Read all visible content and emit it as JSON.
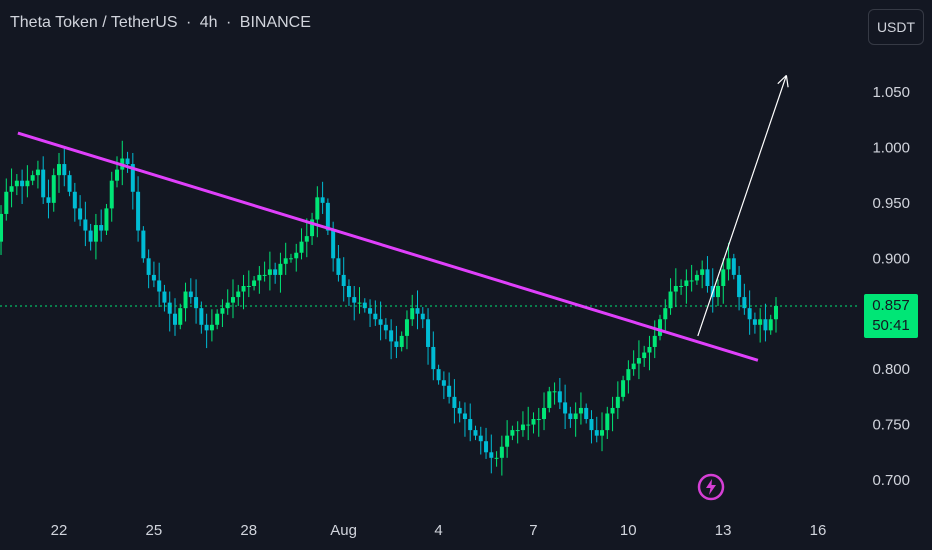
{
  "header": {
    "symbol_name": "Theta Token / TetherUS",
    "interval": "4h",
    "exchange": "BINANCE",
    "separator": "·"
  },
  "currency_button": "USDT",
  "last_price": {
    "price": "0.857",
    "countdown": "50:41"
  },
  "colors": {
    "background": "#131722",
    "up": "#00e676",
    "down": "#00bcd4",
    "trendline": "#e040fb",
    "arrow": "#ffffff",
    "price_line": "#00e676",
    "logo": "#d53fd5"
  },
  "icons": {
    "logo": "lightning-bolt-icon"
  },
  "chart_data": {
    "type": "candlestick",
    "ylim": [
      0.68,
      1.09
    ],
    "y_ticks": [
      "1.050",
      "1.000",
      "0.950",
      "0.900",
      "0.850",
      "0.800",
      "0.750",
      "0.700"
    ],
    "x_ticks": [
      {
        "label": "22",
        "day": 22
      },
      {
        "label": "25",
        "day": 25
      },
      {
        "label": "28",
        "day": 28
      },
      {
        "label": "Aug",
        "day": 31
      },
      {
        "label": "4",
        "day": 34
      },
      {
        "label": "7",
        "day": 37
      },
      {
        "label": "10",
        "day": 40
      },
      {
        "label": "13",
        "day": 43
      },
      {
        "label": "16",
        "day": 46
      }
    ],
    "candles": {
      "start_day": 20.0,
      "step_days": 0.1667,
      "close": [
        0.915,
        0.94,
        0.96,
        0.965,
        0.97,
        0.965,
        0.97,
        0.975,
        0.98,
        0.955,
        0.95,
        0.975,
        0.985,
        0.975,
        0.96,
        0.945,
        0.935,
        0.925,
        0.915,
        0.93,
        0.925,
        0.945,
        0.97,
        0.98,
        0.99,
        0.985,
        0.96,
        0.925,
        0.9,
        0.885,
        0.88,
        0.87,
        0.86,
        0.85,
        0.84,
        0.855,
        0.87,
        0.865,
        0.855,
        0.84,
        0.835,
        0.84,
        0.85,
        0.855,
        0.86,
        0.865,
        0.87,
        0.875,
        0.875,
        0.88,
        0.885,
        0.885,
        0.89,
        0.885,
        0.895,
        0.9,
        0.9,
        0.905,
        0.915,
        0.92,
        0.935,
        0.955,
        0.95,
        0.925,
        0.9,
        0.885,
        0.875,
        0.865,
        0.86,
        0.86,
        0.855,
        0.85,
        0.845,
        0.84,
        0.835,
        0.825,
        0.82,
        0.83,
        0.845,
        0.855,
        0.85,
        0.845,
        0.82,
        0.8,
        0.79,
        0.785,
        0.775,
        0.765,
        0.76,
        0.755,
        0.745,
        0.74,
        0.735,
        0.725,
        0.72,
        0.72,
        0.73,
        0.74,
        0.745,
        0.745,
        0.75,
        0.75,
        0.755,
        0.755,
        0.765,
        0.78,
        0.78,
        0.77,
        0.76,
        0.755,
        0.76,
        0.765,
        0.755,
        0.745,
        0.74,
        0.745,
        0.76,
        0.765,
        0.775,
        0.79,
        0.8,
        0.805,
        0.81,
        0.815,
        0.82,
        0.83,
        0.845,
        0.855,
        0.87,
        0.875,
        0.875,
        0.88,
        0.88,
        0.885,
        0.89,
        0.875,
        0.865,
        0.875,
        0.89,
        0.9,
        0.885,
        0.865,
        0.855,
        0.845,
        0.84,
        0.845,
        0.835,
        0.845,
        0.857
      ],
      "open": [
        0.9,
        0.915,
        0.94,
        0.96,
        0.965,
        0.97,
        0.965,
        0.97,
        0.975,
        0.98,
        0.955,
        0.95,
        0.975,
        0.985,
        0.975,
        0.96,
        0.945,
        0.935,
        0.925,
        0.915,
        0.93,
        0.925,
        0.945,
        0.97,
        0.98,
        0.99,
        0.985,
        0.96,
        0.925,
        0.9,
        0.885,
        0.88,
        0.87,
        0.86,
        0.85,
        0.84,
        0.855,
        0.87,
        0.865,
        0.855,
        0.84,
        0.835,
        0.84,
        0.85,
        0.855,
        0.86,
        0.865,
        0.87,
        0.875,
        0.875,
        0.88,
        0.885,
        0.885,
        0.89,
        0.885,
        0.895,
        0.9,
        0.9,
        0.905,
        0.915,
        0.92,
        0.935,
        0.955,
        0.95,
        0.925,
        0.9,
        0.885,
        0.875,
        0.865,
        0.86,
        0.86,
        0.855,
        0.85,
        0.845,
        0.84,
        0.835,
        0.825,
        0.82,
        0.83,
        0.845,
        0.855,
        0.85,
        0.845,
        0.82,
        0.8,
        0.79,
        0.785,
        0.775,
        0.765,
        0.76,
        0.755,
        0.745,
        0.74,
        0.735,
        0.725,
        0.72,
        0.72,
        0.73,
        0.74,
        0.745,
        0.745,
        0.75,
        0.75,
        0.755,
        0.755,
        0.765,
        0.78,
        0.78,
        0.77,
        0.76,
        0.755,
        0.76,
        0.765,
        0.755,
        0.745,
        0.74,
        0.745,
        0.76,
        0.765,
        0.775,
        0.79,
        0.8,
        0.805,
        0.81,
        0.815,
        0.82,
        0.83,
        0.845,
        0.855,
        0.87,
        0.875,
        0.875,
        0.88,
        0.88,
        0.885,
        0.89,
        0.875,
        0.865,
        0.875,
        0.89,
        0.9,
        0.885,
        0.865,
        0.855,
        0.845,
        0.84,
        0.845,
        0.835,
        0.845
      ]
    },
    "trendline": {
      "start": [
        20.7,
        1.013
      ],
      "end": [
        44.1,
        0.808
      ]
    },
    "arrow": {
      "start": [
        42.2,
        0.83
      ],
      "end": [
        45.0,
        1.065
      ]
    },
    "last_price_line": 0.857
  }
}
